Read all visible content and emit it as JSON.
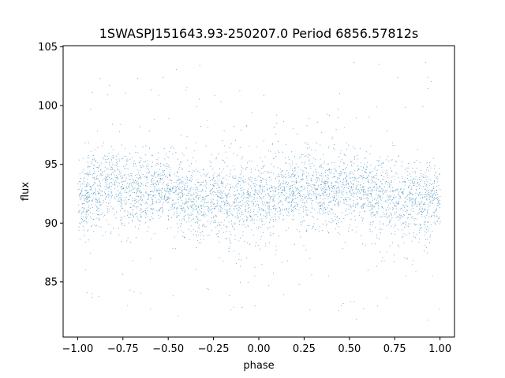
{
  "chart_data": {
    "type": "scatter",
    "title": "1SWASPJ151643.93-250207.0 Period 6856.57812s",
    "xlabel": "phase",
    "ylabel": "flux",
    "xlim": [
      -1.08,
      1.08
    ],
    "ylim": [
      80.3,
      105.1
    ],
    "xticks": [
      -1.0,
      -0.75,
      -0.5,
      -0.25,
      0.0,
      0.25,
      0.5,
      0.75,
      1.0
    ],
    "xtick_labels": [
      "−1.00",
      "−0.75",
      "−0.50",
      "−0.25",
      "0.00",
      "0.25",
      "0.50",
      "0.75",
      "1.00"
    ],
    "yticks": [
      85,
      90,
      95,
      100,
      105
    ],
    "ytick_labels": [
      "85",
      "90",
      "95",
      "100",
      "105"
    ],
    "grid": false,
    "series": [
      {
        "color": "#1f77b4",
        "marker_size": 1,
        "model": "folded light curve: flux ≈ 92.5 + 0.6·cos(2π·(2·phase + 0.65)), dense band 89–96, sparse outliers 81.5–104",
        "points": [
          [
            -1.0,
            92.1
          ],
          [
            -0.95,
            92.4
          ],
          [
            -0.9,
            92.9
          ],
          [
            -0.85,
            93.2
          ],
          [
            -0.8,
            93.3
          ],
          [
            -0.75,
            93.1
          ],
          [
            -0.7,
            93.0
          ],
          [
            -0.65,
            92.8
          ],
          [
            -0.6,
            92.9
          ],
          [
            -0.55,
            93.0
          ],
          [
            -0.5,
            92.8
          ],
          [
            -0.45,
            92.5
          ],
          [
            -0.4,
            92.2
          ],
          [
            -0.35,
            92.0
          ],
          [
            -0.3,
            91.9
          ],
          [
            -0.25,
            92.0
          ],
          [
            -0.2,
            91.9
          ],
          [
            -0.15,
            91.8
          ],
          [
            -0.1,
            91.9
          ],
          [
            -0.05,
            92.0
          ],
          [
            0.0,
            91.9
          ],
          [
            0.05,
            92.0
          ],
          [
            0.1,
            92.2
          ],
          [
            0.15,
            92.5
          ],
          [
            0.2,
            92.8
          ],
          [
            0.25,
            93.0
          ],
          [
            0.3,
            93.1
          ],
          [
            0.35,
            93.0
          ],
          [
            0.4,
            92.9
          ],
          [
            0.45,
            92.9
          ],
          [
            0.5,
            93.0
          ],
          [
            0.55,
            92.8
          ],
          [
            0.6,
            92.5
          ],
          [
            0.65,
            92.3
          ],
          [
            0.7,
            92.1
          ],
          [
            0.75,
            92.0
          ],
          [
            0.8,
            91.9
          ],
          [
            0.85,
            91.9
          ],
          [
            0.9,
            92.0
          ],
          [
            0.95,
            92.1
          ],
          [
            1.0,
            92.1
          ]
        ]
      }
    ]
  }
}
